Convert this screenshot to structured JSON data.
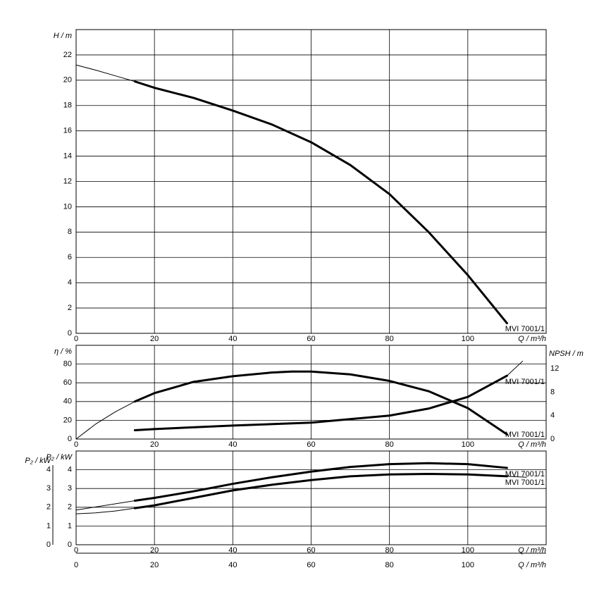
{
  "chart_data": [
    {
      "type": "line",
      "y_label": "H / m",
      "x_label": "Q / m³/h",
      "xlim": [
        0,
        120
      ],
      "xticks": [
        0,
        20,
        40,
        60,
        80,
        100
      ],
      "ylim": [
        0,
        24
      ],
      "yticks": [
        0,
        2,
        4,
        6,
        8,
        10,
        12,
        14,
        16,
        18,
        20,
        22
      ],
      "grid": true,
      "series": [
        {
          "color": "#000000",
          "width": 1,
          "x": [
            0,
            5,
            10,
            15
          ],
          "values": [
            21.2,
            20.8,
            20.35,
            19.9
          ]
        },
        {
          "name": "MVI 7001/1",
          "color": "#000000",
          "width": 3,
          "x": [
            15,
            20,
            30,
            40,
            50,
            60,
            70,
            80,
            90,
            100,
            110
          ],
          "values": [
            19.9,
            19.4,
            18.6,
            17.6,
            16.5,
            15.1,
            13.3,
            11.0,
            8.0,
            4.6,
            0.8
          ]
        }
      ]
    },
    {
      "type": "line",
      "y_label": "η / %",
      "y2_label": "NPSH / m",
      "x_label": "Q / m³/h",
      "xlim": [
        0,
        120
      ],
      "xticks": [
        0,
        20,
        40,
        60,
        80,
        100
      ],
      "ylim": [
        0,
        100
      ],
      "yticks": [
        0,
        20,
        40,
        60,
        80
      ],
      "y2lim": [
        0,
        16
      ],
      "y2ticks": [
        0,
        4,
        8,
        12
      ],
      "grid": true,
      "series": [
        {
          "color": "#000000",
          "width": 1,
          "x": [
            0,
            5,
            10,
            15
          ],
          "values": [
            0,
            16,
            29,
            40
          ]
        },
        {
          "name": "MVI 7001/1",
          "color": "#000000",
          "width": 3,
          "x": [
            15,
            20,
            30,
            40,
            50,
            55,
            60,
            70,
            80,
            90,
            100,
            110
          ],
          "values": [
            40,
            49,
            61,
            67,
            71,
            72,
            72,
            69,
            62,
            51,
            33,
            5
          ]
        },
        {
          "name": "MVI 7001/1",
          "axis": "y2",
          "color": "#000000",
          "width": 3,
          "x": [
            15,
            20,
            40,
            60,
            80,
            90,
            100,
            110
          ],
          "values": [
            1.5,
            1.7,
            2.3,
            2.8,
            4.0,
            5.2,
            7.2,
            10.8
          ]
        },
        {
          "axis": "y2",
          "color": "#000000",
          "width": 1,
          "x": [
            110,
            114
          ],
          "values": [
            10.8,
            13.3
          ]
        }
      ]
    },
    {
      "type": "line",
      "y_label": "P₂ / kW",
      "x_label": "Q / m³/h",
      "xlim": [
        0,
        120
      ],
      "xticks": [
        0,
        20,
        40,
        60,
        80,
        100
      ],
      "ylim": [
        0,
        5
      ],
      "yticks": [
        0,
        1,
        2,
        3,
        4
      ],
      "grid": true,
      "series": [
        {
          "color": "#000000",
          "width": 1,
          "x": [
            0,
            15
          ],
          "values": [
            1.85,
            2.35
          ]
        },
        {
          "name": "MVI 7001/1",
          "color": "#000000",
          "width": 3,
          "x": [
            15,
            20,
            30,
            40,
            50,
            60,
            70,
            80,
            90,
            100,
            110
          ],
          "values": [
            2.35,
            2.5,
            2.85,
            3.25,
            3.6,
            3.9,
            4.15,
            4.3,
            4.35,
            4.3,
            4.1
          ]
        },
        {
          "color": "#000000",
          "width": 1,
          "x": [
            0,
            5,
            10,
            15
          ],
          "values": [
            1.65,
            1.7,
            1.8,
            1.95
          ]
        },
        {
          "name": "MVI 7001/1",
          "color": "#000000",
          "width": 3,
          "x": [
            15,
            20,
            30,
            40,
            50,
            60,
            70,
            80,
            90,
            100,
            110
          ],
          "values": [
            1.95,
            2.1,
            2.5,
            2.9,
            3.2,
            3.45,
            3.65,
            3.75,
            3.78,
            3.75,
            3.65
          ]
        },
        {
          "color": "#000000",
          "width": 1,
          "x": [
            110,
            115
          ],
          "values": [
            3.65,
            3.6
          ]
        }
      ]
    }
  ]
}
